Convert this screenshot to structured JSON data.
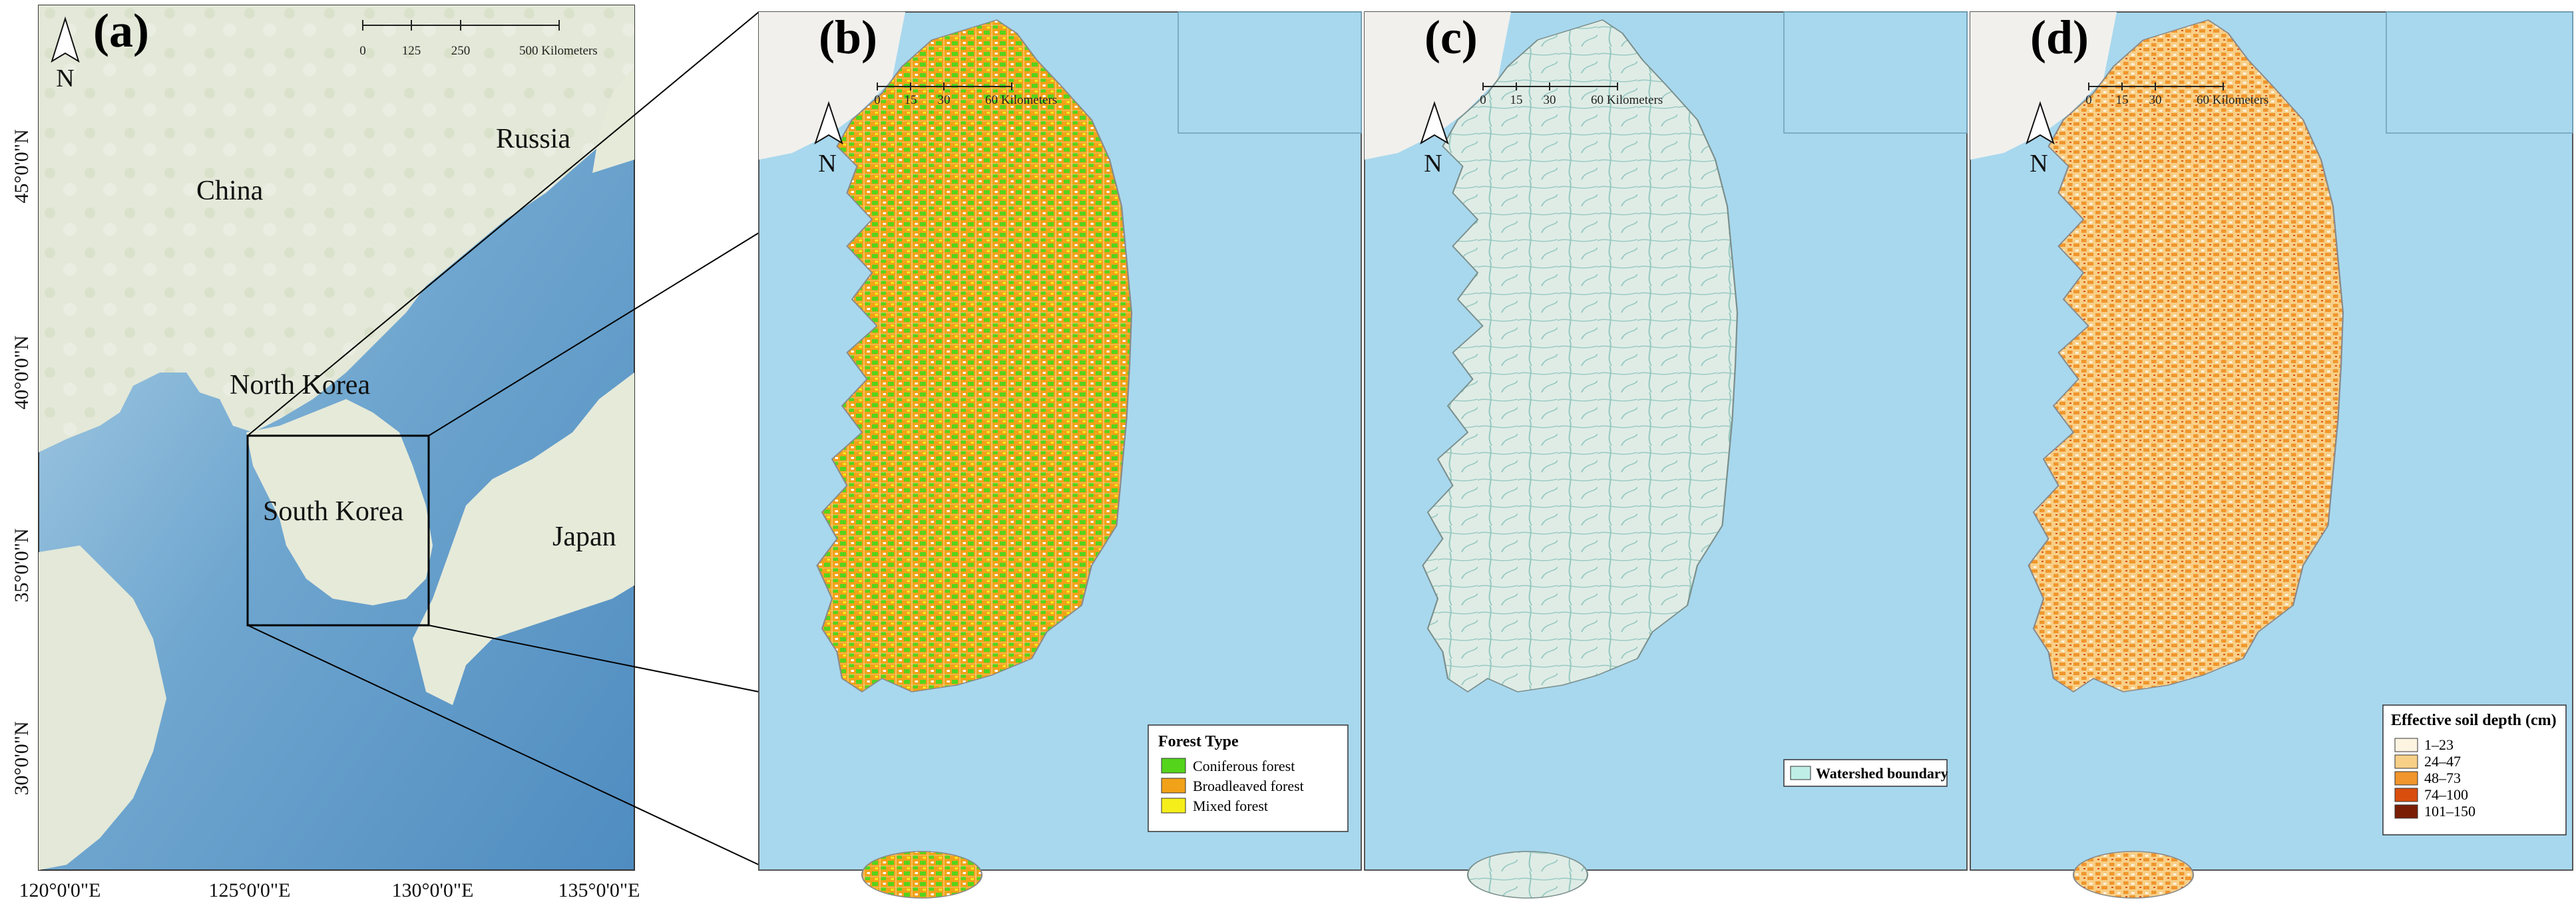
{
  "figure": {
    "panels": [
      {
        "id": "a",
        "label": "(a)"
      },
      {
        "id": "b",
        "label": "(b)"
      },
      {
        "id": "c",
        "label": "(c)"
      },
      {
        "id": "d",
        "label": "(d)"
      }
    ]
  },
  "panel_a": {
    "countries": {
      "china": "China",
      "russia": "Russia",
      "north_korea": "North Korea",
      "south_korea": "South Korea",
      "japan": "Japan"
    },
    "lat_labels": [
      "45°0'0\"N",
      "40°0'0\"N",
      "35°0'0\"N",
      "30°0'0\"N"
    ],
    "lon_labels": [
      "120°0'0\"E",
      "125°0'0\"E",
      "130°0'0\"E",
      "135°0'0\"E"
    ],
    "scale": {
      "ticks": [
        "0",
        "125",
        "250",
        "500 Kilometers"
      ]
    },
    "north": "N"
  },
  "panel_b": {
    "scale": {
      "ticks": [
        "0",
        "15",
        "30",
        "60 Kilometers"
      ]
    },
    "north": "N",
    "legend": {
      "title": "Forest Type",
      "items": [
        {
          "label": "Coniferous forest",
          "color": "#55d41c"
        },
        {
          "label": "Broadleaved forest",
          "color": "#f2a218"
        },
        {
          "label": "Mixed forest",
          "color": "#f5ee1a"
        }
      ]
    }
  },
  "panel_c": {
    "scale": {
      "ticks": [
        "0",
        "15",
        "30",
        "60 Kilometers"
      ]
    },
    "north": "N",
    "legend": {
      "items": [
        {
          "label": "Watershed boundary",
          "color": "#bfeee6"
        }
      ]
    }
  },
  "panel_d": {
    "scale": {
      "ticks": [
        "0",
        "15",
        "30",
        "60 Kilometers"
      ]
    },
    "north": "N",
    "legend": {
      "title": "Effective soil depth (cm)",
      "items": [
        {
          "label": "1–23",
          "color": "#fdf3e1"
        },
        {
          "label": "24–47",
          "color": "#f8cf87"
        },
        {
          "label": "48–73",
          "color": "#f0962c"
        },
        {
          "label": "74–100",
          "color": "#d94e0d"
        },
        {
          "label": "101–150",
          "color": "#7a1e05"
        }
      ]
    }
  },
  "colors": {
    "sea": "#a8d8ee",
    "sea_deep": "#5d9cc9",
    "land": "#e8ecdf",
    "land_b": "#f1f0ec"
  }
}
